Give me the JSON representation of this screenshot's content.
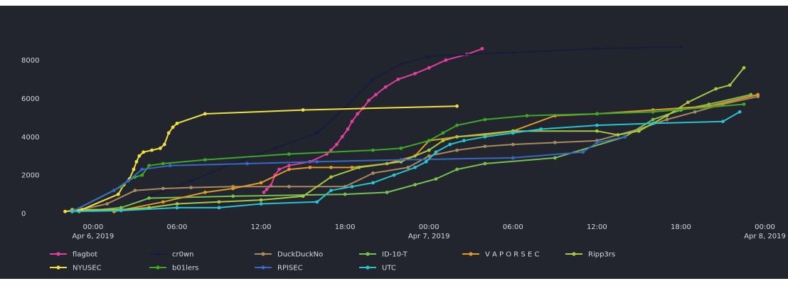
{
  "chart_data": {
    "type": "line",
    "title": "",
    "xlabel": "",
    "ylabel": "",
    "x_unit": "hours since 2019-04-06 00:00",
    "xlim": [
      -3.5,
      46.5
    ],
    "ylim": [
      0,
      8800
    ],
    "x_ticks": [
      {
        "x": 0,
        "lines": [
          "00:00",
          "Apr 6, 2019"
        ]
      },
      {
        "x": 6,
        "lines": [
          "06:00"
        ]
      },
      {
        "x": 12,
        "lines": [
          "12:00"
        ]
      },
      {
        "x": 18,
        "lines": [
          "18:00"
        ]
      },
      {
        "x": 24,
        "lines": [
          "00:00",
          "Apr 7, 2019"
        ]
      },
      {
        "x": 30,
        "lines": [
          "06:00"
        ]
      },
      {
        "x": 36,
        "lines": [
          "12:00"
        ]
      },
      {
        "x": 42,
        "lines": [
          "18:00"
        ]
      },
      {
        "x": 48,
        "lines": [
          "00:00",
          "Apr 8, 2019"
        ]
      }
    ],
    "y_ticks": [
      {
        "y": 0,
        "label": "0"
      },
      {
        "y": 2000,
        "label": "2000"
      },
      {
        "y": 4000,
        "label": "4000"
      },
      {
        "y": 6000,
        "label": "6000"
      },
      {
        "y": 8000,
        "label": "8000"
      }
    ],
    "grid": false,
    "legend": "bottom",
    "series": [
      {
        "name": "flagbot",
        "color": "#e040a0",
        "x": [
          12.2,
          12.4,
          12.7,
          13.0,
          13.3,
          14.0,
          15.5,
          16.7,
          17.0,
          17.4,
          17.8,
          18.2,
          18.5,
          18.9,
          19.3,
          19.7,
          20.2,
          20.9,
          21.8,
          23.0,
          24.0,
          25.2,
          26.7,
          27.8
        ],
        "y": [
          1100,
          1250,
          1450,
          2000,
          2300,
          2500,
          2700,
          3100,
          3300,
          3600,
          4000,
          4400,
          4800,
          5200,
          5500,
          5900,
          6200,
          6600,
          7000,
          7300,
          7600,
          8000,
          8300,
          8600
        ]
      },
      {
        "name": "cr0wn",
        "color": "#181c3a",
        "x": [
          1.6,
          4.0,
          7.0,
          10.0,
          13.0,
          16.0,
          18.0,
          20.0,
          22.0,
          24.0,
          30.0,
          36.0,
          42.0
        ],
        "y": [
          200,
          900,
          1700,
          2600,
          3400,
          4200,
          5500,
          7000,
          7800,
          8200,
          8400,
          8600,
          8700
        ]
      },
      {
        "name": "DuckDuckNo",
        "color": "#a88a5e",
        "x": [
          -1.5,
          1.0,
          3.0,
          5.0,
          7.0,
          10.0,
          14.0,
          18.0,
          20.0,
          22.5,
          24.0,
          26.0,
          28.0,
          30.0,
          33.0,
          36.0,
          39.0,
          41.0,
          43.0,
          45.0,
          47.5
        ],
        "y": [
          100,
          500,
          1200,
          1300,
          1350,
          1400,
          1400,
          1400,
          2100,
          2400,
          3000,
          3300,
          3500,
          3600,
          3700,
          3800,
          4400,
          4900,
          5300,
          5700,
          6100
        ]
      },
      {
        "name": "ID-10-T",
        "color": "#78c050",
        "x": [
          -1.0,
          2.0,
          4.0,
          10.0,
          18.0,
          21.0,
          23.0,
          24.5,
          26.0,
          28.0,
          33.0,
          38.0,
          40.0,
          42.0,
          44.0,
          47.0
        ],
        "y": [
          100,
          300,
          800,
          900,
          1000,
          1100,
          1500,
          1800,
          2300,
          2600,
          2900,
          4000,
          4900,
          5400,
          5700,
          6200
        ]
      },
      {
        "name": "V A P O R S E C",
        "color": "#e09a2a",
        "x": [
          1.5,
          5.0,
          8.0,
          10.0,
          12.0,
          14.0,
          15.5,
          17.0,
          18.5,
          21.0,
          23.0,
          24.0,
          26.0,
          28.0,
          30.0,
          33.0,
          36.0,
          40.0,
          42.0,
          44.0,
          47.5
        ],
        "y": [
          100,
          600,
          1100,
          1300,
          1600,
          2300,
          2400,
          2400,
          2400,
          2600,
          3000,
          3800,
          4000,
          4100,
          4300,
          5100,
          5200,
          5400,
          5500,
          5600,
          6200
        ]
      },
      {
        "name": "Ripp3rs",
        "color": "#a8c840",
        "x": [
          -1.5,
          2.0,
          4.0,
          6.0,
          9.0,
          12.0,
          15.0,
          17.0,
          19.0,
          22.0,
          24.0,
          25.0,
          26.0,
          30.0,
          36.0,
          37.5,
          39.0,
          41.0,
          42.5,
          44.5,
          45.5,
          46.5
        ],
        "y": [
          200,
          200,
          300,
          500,
          600,
          700,
          900,
          1900,
          2400,
          2700,
          3300,
          3800,
          4000,
          4300,
          4300,
          4100,
          4300,
          5100,
          5800,
          6500,
          6700,
          7600
        ]
      },
      {
        "name": "NYUSEC",
        "color": "#f0e040",
        "x": [
          -2.0,
          -0.8,
          1.8,
          2.2,
          2.6,
          2.9,
          3.1,
          3.3,
          3.6,
          4.2,
          4.8,
          5.1,
          5.4,
          5.7,
          6.0,
          8.0,
          15.0,
          26.0
        ],
        "y": [
          100,
          200,
          1000,
          1500,
          1800,
          2300,
          2700,
          3000,
          3200,
          3300,
          3400,
          3600,
          4200,
          4500,
          4700,
          5200,
          5400,
          5600
        ]
      },
      {
        "name": "b01lers",
        "color": "#3ca82a",
        "x": [
          -1.5,
          2.0,
          2.5,
          3.0,
          3.5,
          4.0,
          5.0,
          8.0,
          14.0,
          20.0,
          22.0,
          24.0,
          25.0,
          26.0,
          28.0,
          31.0,
          36.0,
          40.0,
          46.5
        ],
        "y": [
          100,
          1400,
          1700,
          1900,
          2000,
          2500,
          2600,
          2800,
          3100,
          3300,
          3400,
          3800,
          4200,
          4600,
          4900,
          5100,
          5200,
          5300,
          5700
        ]
      },
      {
        "name": "RPISEC",
        "color": "#3868c0",
        "x": [
          -1.5,
          1.5,
          2.5,
          3.5,
          5.5,
          11.0,
          16.0,
          22.0,
          30.0,
          35.0,
          36.0,
          38.0
        ],
        "y": [
          100,
          1200,
          1700,
          2300,
          2500,
          2600,
          2700,
          2800,
          2900,
          3200,
          3700,
          4000
        ]
      },
      {
        "name": "UTC",
        "color": "#28c4d0",
        "x": [
          -1.5,
          2.0,
          6.0,
          9.0,
          12.0,
          16.0,
          17.0,
          18.5,
          20.0,
          21.5,
          23.0,
          23.8,
          24.5,
          25.5,
          26.5,
          28.0,
          30.0,
          32.0,
          36.0,
          40.0,
          45.0,
          46.2
        ],
        "y": [
          100,
          150,
          300,
          300,
          500,
          600,
          1200,
          1400,
          1600,
          2000,
          2400,
          2700,
          3200,
          3600,
          3800,
          4000,
          4200,
          4400,
          4600,
          4700,
          4800,
          5300
        ]
      }
    ]
  }
}
